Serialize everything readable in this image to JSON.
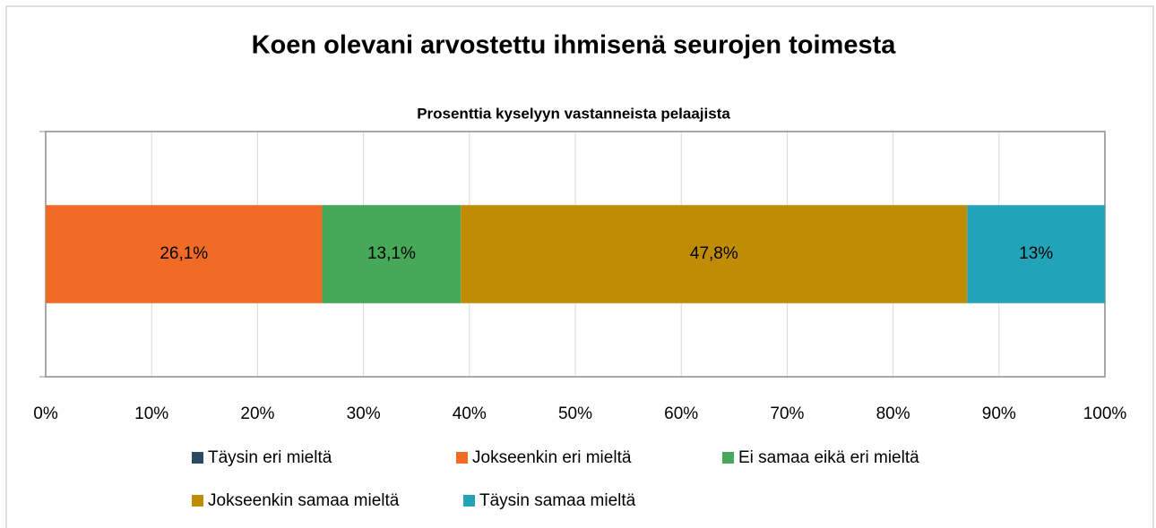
{
  "chart_data": {
    "type": "stacked-bar-horizontal",
    "title": "Koen olevani arvostettu ihmisenä seurojen toimesta",
    "subtitle": "Prosenttia kyselyyn vastanneista pelaajista",
    "categories": [
      null
    ],
    "series": [
      {
        "name": "Täysin eri mieltä",
        "color": "#2b4a5f",
        "values": [
          0
        ]
      },
      {
        "name": "Jokseenkin eri mieltä",
        "color": "#f26b26",
        "values": [
          26.1
        ],
        "value_labels": [
          "26,1%"
        ]
      },
      {
        "name": "Ei samaa eikä eri mieltä",
        "color": "#46a95a",
        "values": [
          13.1
        ],
        "value_labels": [
          "13,1%"
        ]
      },
      {
        "name": "Jokseenkin samaa mieltä",
        "color": "#c08c04",
        "values": [
          47.8
        ],
        "value_labels": [
          "47,8%"
        ]
      },
      {
        "name": "Täysin samaa mieltä",
        "color": "#23a3b8",
        "values": [
          13
        ],
        "value_labels": [
          "13%"
        ]
      }
    ],
    "xlim": [
      0,
      100
    ],
    "xticks": [
      {
        "value": 0,
        "label": "0%"
      },
      {
        "value": 10,
        "label": "10%"
      },
      {
        "value": 20,
        "label": "20%"
      },
      {
        "value": 30,
        "label": "30%"
      },
      {
        "value": 40,
        "label": "40%"
      },
      {
        "value": 50,
        "label": "50%"
      },
      {
        "value": 60,
        "label": "60%"
      },
      {
        "value": 70,
        "label": "70%"
      },
      {
        "value": 80,
        "label": "80%"
      },
      {
        "value": 90,
        "label": "90%"
      },
      {
        "value": 100,
        "label": "100%"
      }
    ],
    "grid": true,
    "legend": "bottom"
  }
}
